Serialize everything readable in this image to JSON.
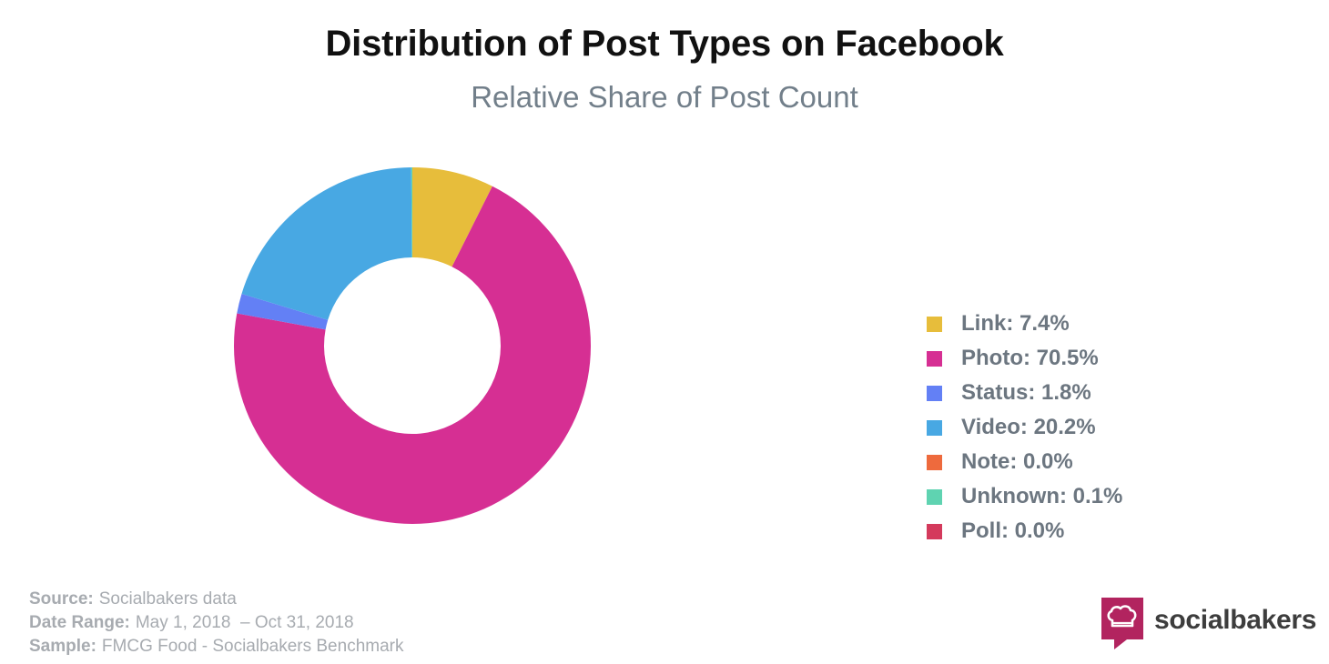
{
  "header": {
    "title": "Distribution of Post Types on Facebook",
    "subtitle": "Relative Share of Post Count"
  },
  "chart_data": {
    "type": "pie",
    "donut": true,
    "title": "Distribution of Post Types on Facebook",
    "subtitle": "Relative Share of Post Count",
    "unit": "%",
    "legend_position": "right",
    "slices": [
      {
        "name": "Link",
        "value": 7.4,
        "color": "#e7bd3b",
        "label": "Link: 7.4%"
      },
      {
        "name": "Photo",
        "value": 70.5,
        "color": "#d62f93",
        "label": "Photo: 70.5%"
      },
      {
        "name": "Status",
        "value": 1.8,
        "color": "#6380f5",
        "label": "Status: 1.8%"
      },
      {
        "name": "Video",
        "value": 20.2,
        "color": "#48a8e3",
        "label": "Video: 20.2%"
      },
      {
        "name": "Note",
        "value": 0.0,
        "color": "#ee6a3d",
        "label": "Note: 0.0%"
      },
      {
        "name": "Unknown",
        "value": 0.1,
        "color": "#5fd3b1",
        "label": "Unknown: 0.1%"
      },
      {
        "name": "Poll",
        "value": 0.0,
        "color": "#d43a5c",
        "label": "Poll: 0.0%"
      }
    ]
  },
  "footer": {
    "source_key": "Source:",
    "source_value": "Socialbakers data",
    "date_key": "Date Range:",
    "date_value": "May 1, 2018  – Oct 31, 2018",
    "sample_key": "Sample:",
    "sample_value": "FMCG Food - Socialbakers Benchmark"
  },
  "brand": {
    "name": "socialbakers",
    "icon": "chef-hat-speech-bubble-icon",
    "color": "#b2245f"
  }
}
